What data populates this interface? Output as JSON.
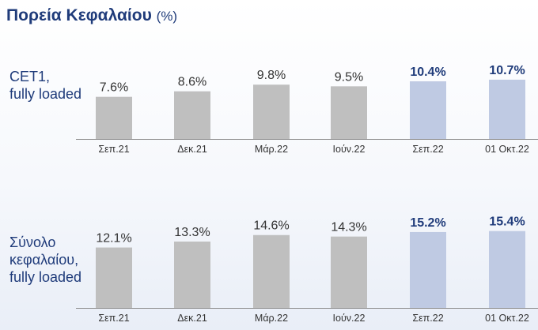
{
  "title": "Πορεία Κεφαλαίου",
  "title_unit": "(%)",
  "colors": {
    "base_bar": "#bfbfbf",
    "highlight_bar": "#bfcae3",
    "highlight_text": "#1f3b7a",
    "axis": "#8a8a8a"
  },
  "chart_data": [
    {
      "type": "bar",
      "row_label_lines": [
        "CET1,",
        "fully loaded"
      ],
      "categories": [
        "Σεπ.21",
        "Δεκ.21",
        "Μάρ.22",
        "Ιούν.22",
        "Σεπ.22",
        "01 Οκτ.22"
      ],
      "values": [
        7.6,
        8.6,
        9.8,
        9.5,
        10.4,
        10.7
      ],
      "labels": [
        "7.6%",
        "8.6%",
        "9.8%",
        "9.5%",
        "10.4%",
        "10.7%"
      ],
      "highlight": [
        false,
        false,
        false,
        false,
        true,
        true
      ],
      "ylim": [
        0,
        11.4
      ],
      "grid": false
    },
    {
      "type": "bar",
      "row_label_lines": [
        "Σύνολο",
        "κεφαλαίου,",
        "fully loaded"
      ],
      "categories": [
        "Σεπ.21",
        "Δεκ.21",
        "Μάρ.22",
        "Ιούν.22",
        "Σεπ.22",
        "01 Οκτ.22"
      ],
      "values": [
        12.1,
        13.3,
        14.6,
        14.3,
        15.2,
        15.4
      ],
      "labels": [
        "12.1%",
        "13.3%",
        "14.6%",
        "14.3%",
        "15.2%",
        "15.4%"
      ],
      "highlight": [
        false,
        false,
        false,
        false,
        true,
        true
      ],
      "ylim": [
        0,
        16.3
      ],
      "grid": false
    }
  ]
}
